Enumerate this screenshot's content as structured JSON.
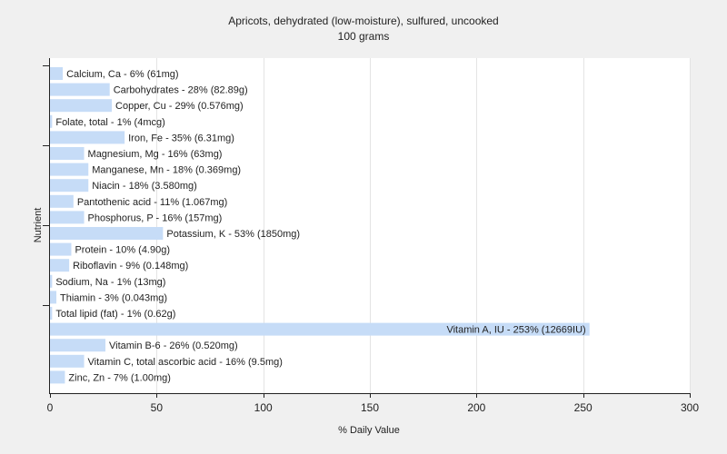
{
  "chart_data": {
    "type": "bar",
    "orientation": "horizontal",
    "title": "Apricots, dehydrated (low-moisture), sulfured, uncooked",
    "subtitle": "100 grams",
    "xlabel": "% Daily Value",
    "ylabel": "Nutrient",
    "xlim": [
      0,
      300
    ],
    "xticks": [
      0,
      50,
      100,
      150,
      200,
      250,
      300
    ],
    "grid": true,
    "bar_color": "#c6dcf7",
    "categories": [
      "Calcium, Ca",
      "Carbohydrates",
      "Copper, Cu",
      "Folate, total",
      "Iron, Fe",
      "Magnesium, Mg",
      "Manganese, Mn",
      "Niacin",
      "Pantothenic acid",
      "Phosphorus, P",
      "Potassium, K",
      "Protein",
      "Riboflavin",
      "Sodium, Na",
      "Thiamin",
      "Total lipid (fat)",
      "Vitamin A, IU",
      "Vitamin B-6",
      "Vitamin C, total ascorbic acid",
      "Zinc, Zn"
    ],
    "values": [
      6,
      28,
      29,
      1,
      35,
      16,
      18,
      18,
      11,
      16,
      53,
      10,
      9,
      1,
      3,
      1,
      253,
      26,
      16,
      7
    ],
    "labels": [
      "Calcium, Ca - 6% (61mg)",
      "Carbohydrates - 28% (82.89g)",
      "Copper, Cu - 29% (0.576mg)",
      "Folate, total - 1% (4mcg)",
      "Iron, Fe - 35% (6.31mg)",
      "Magnesium, Mg - 16% (63mg)",
      "Manganese, Mn - 18% (0.369mg)",
      "Niacin - 18% (3.580mg)",
      "Pantothenic acid - 11% (1.067mg)",
      "Phosphorus, P - 16% (157mg)",
      "Potassium, K - 53% (1850mg)",
      "Protein - 10% (4.90g)",
      "Riboflavin - 9% (0.148mg)",
      "Sodium, Na - 1% (13mg)",
      "Thiamin - 3% (0.043mg)",
      "Total lipid (fat) - 1% (0.62g)",
      "Vitamin A, IU - 253% (12669IU)",
      "Vitamin B-6 - 26% (0.520mg)",
      "Vitamin C, total ascorbic acid - 16% (9.5mg)",
      "Zinc, Zn - 7% (1.00mg)"
    ]
  }
}
